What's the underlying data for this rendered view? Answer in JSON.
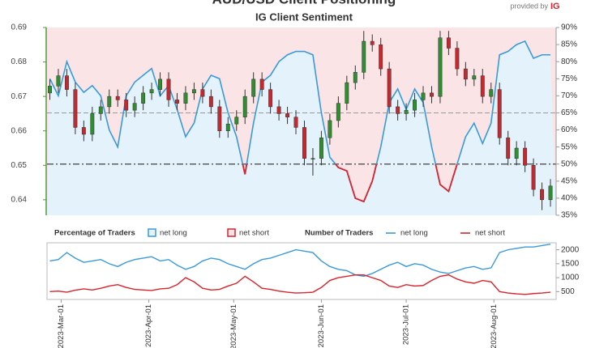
{
  "chart_data": [
    {
      "type": "candlestick",
      "title": "AUD/USD Client Positioning",
      "subtitle": "IG Client Sentiment",
      "credit": {
        "text": "provided by",
        "brand": "IG"
      },
      "x": [
        "2023-02-25",
        "2023-02-28",
        "2023-03-03",
        "2023-03-06",
        "2023-03-09",
        "2023-03-12",
        "2023-03-15",
        "2023-03-18",
        "2023-03-21",
        "2023-03-24",
        "2023-03-27",
        "2023-03-30",
        "2023-04-02",
        "2023-04-05",
        "2023-04-08",
        "2023-04-11",
        "2023-04-14",
        "2023-04-17",
        "2023-04-20",
        "2023-04-23",
        "2023-04-26",
        "2023-04-29",
        "2023-05-02",
        "2023-05-05",
        "2023-05-08",
        "2023-05-11",
        "2023-05-14",
        "2023-05-17",
        "2023-05-20",
        "2023-05-23",
        "2023-05-26",
        "2023-05-29",
        "2023-06-01",
        "2023-06-04",
        "2023-06-07",
        "2023-06-10",
        "2023-06-13",
        "2023-06-16",
        "2023-06-19",
        "2023-06-22",
        "2023-06-25",
        "2023-06-28",
        "2023-07-01",
        "2023-07-04",
        "2023-07-07",
        "2023-07-10",
        "2023-07-13",
        "2023-07-16",
        "2023-07-19",
        "2023-07-22",
        "2023-07-25",
        "2023-07-28",
        "2023-07-31",
        "2023-08-03",
        "2023-08-06",
        "2023-08-09",
        "2023-08-12",
        "2023-08-15",
        "2023-08-18",
        "2023-08-21"
      ],
      "xlim": [
        "2023-02-24",
        "2023-08-23"
      ],
      "open": [
        0.671,
        0.673,
        0.676,
        0.672,
        0.661,
        0.659,
        0.665,
        0.667,
        0.67,
        0.669,
        0.666,
        0.668,
        0.671,
        0.672,
        0.675,
        0.669,
        0.668,
        0.671,
        0.672,
        0.67,
        0.667,
        0.66,
        0.662,
        0.664,
        0.67,
        0.675,
        0.672,
        0.667,
        0.665,
        0.664,
        0.661,
        0.652,
        0.652,
        0.658,
        0.663,
        0.668,
        0.674,
        0.677,
        0.686,
        0.685,
        0.678,
        0.667,
        0.665,
        0.666,
        0.669,
        0.671,
        0.67,
        0.687,
        0.684,
        0.678,
        0.675,
        0.676,
        0.67,
        0.672,
        0.658,
        0.652,
        0.655,
        0.65,
        0.643,
        0.64
      ],
      "high": [
        0.675,
        0.678,
        0.678,
        0.674,
        0.663,
        0.667,
        0.669,
        0.672,
        0.672,
        0.671,
        0.67,
        0.673,
        0.674,
        0.677,
        0.677,
        0.671,
        0.673,
        0.674,
        0.674,
        0.672,
        0.669,
        0.664,
        0.666,
        0.672,
        0.677,
        0.677,
        0.674,
        0.669,
        0.667,
        0.666,
        0.663,
        0.655,
        0.66,
        0.665,
        0.67,
        0.676,
        0.679,
        0.689,
        0.688,
        0.687,
        0.68,
        0.669,
        0.668,
        0.671,
        0.673,
        0.673,
        0.689,
        0.689,
        0.686,
        0.68,
        0.678,
        0.678,
        0.674,
        0.674,
        0.66,
        0.657,
        0.657,
        0.652,
        0.645,
        0.646
      ],
      "low": [
        0.669,
        0.671,
        0.67,
        0.659,
        0.657,
        0.657,
        0.663,
        0.665,
        0.667,
        0.664,
        0.664,
        0.666,
        0.669,
        0.67,
        0.667,
        0.666,
        0.666,
        0.669,
        0.668,
        0.665,
        0.658,
        0.658,
        0.66,
        0.662,
        0.668,
        0.67,
        0.665,
        0.663,
        0.662,
        0.659,
        0.65,
        0.647,
        0.65,
        0.656,
        0.661,
        0.666,
        0.672,
        0.675,
        0.683,
        0.676,
        0.665,
        0.663,
        0.663,
        0.664,
        0.667,
        0.668,
        0.668,
        0.682,
        0.676,
        0.673,
        0.673,
        0.668,
        0.668,
        0.656,
        0.65,
        0.65,
        0.648,
        0.641,
        0.637,
        0.638
      ],
      "close": [
        0.673,
        0.676,
        0.672,
        0.661,
        0.659,
        0.665,
        0.667,
        0.67,
        0.669,
        0.666,
        0.668,
        0.671,
        0.672,
        0.675,
        0.669,
        0.668,
        0.671,
        0.672,
        0.67,
        0.667,
        0.66,
        0.662,
        0.664,
        0.67,
        0.675,
        0.672,
        0.667,
        0.665,
        0.664,
        0.661,
        0.652,
        0.652,
        0.658,
        0.663,
        0.668,
        0.674,
        0.677,
        0.686,
        0.685,
        0.678,
        0.667,
        0.665,
        0.666,
        0.669,
        0.671,
        0.67,
        0.687,
        0.684,
        0.678,
        0.675,
        0.676,
        0.67,
        0.672,
        0.658,
        0.652,
        0.655,
        0.65,
        0.643,
        0.64,
        0.644
      ],
      "up_color": "#2f8f2f",
      "down_color": "#c62830",
      "ylim": [
        0.6355,
        0.69
      ],
      "yticks": [
        0.64,
        0.65,
        0.66,
        0.67,
        0.68,
        0.69
      ],
      "pct_long": [
        75,
        70,
        80,
        74,
        71,
        73,
        70,
        60,
        55,
        70,
        74,
        76,
        78,
        70,
        73,
        66,
        58,
        62,
        72,
        76,
        75,
        65,
        58,
        47,
        62,
        74,
        76,
        80,
        82,
        83,
        83,
        82,
        65,
        52,
        49,
        48,
        40,
        39,
        45,
        55,
        68,
        72,
        66,
        72,
        68,
        55,
        44,
        42,
        50,
        58,
        62,
        56,
        62,
        82,
        83,
        85,
        86,
        81,
        82,
        82
      ],
      "y2lim": [
        35,
        90
      ],
      "y2ticks": [
        {
          "value": 35,
          "label": "35%"
        },
        {
          "value": 40,
          "label": "40%"
        },
        {
          "value": 45,
          "label": "45%"
        },
        {
          "value": 50,
          "label": "50%"
        },
        {
          "value": 55,
          "label": "55%"
        },
        {
          "value": 60,
          "label": "60%"
        },
        {
          "value": 65,
          "label": "65%"
        },
        {
          "value": 70,
          "label": "70%"
        },
        {
          "value": 75,
          "label": "75%"
        },
        {
          "value": 80,
          "label": "80%"
        },
        {
          "value": 85,
          "label": "85%"
        },
        {
          "value": 90,
          "label": "90%"
        }
      ],
      "y2_reflines": [
        50,
        65
      ],
      "legend_title": "Percentage of Traders",
      "legend": [
        {
          "name": "net long",
          "color": "#3a9ad9",
          "fill": "#e4f2fb"
        },
        {
          "name": "net short",
          "color": "#d9232d",
          "fill": "#fbe4e6"
        }
      ]
    },
    {
      "type": "line",
      "legend_title": "Number of Traders",
      "x": [
        "2023-02-25",
        "2023-02-28",
        "2023-03-03",
        "2023-03-06",
        "2023-03-09",
        "2023-03-12",
        "2023-03-15",
        "2023-03-18",
        "2023-03-21",
        "2023-03-24",
        "2023-03-27",
        "2023-03-30",
        "2023-04-02",
        "2023-04-05",
        "2023-04-08",
        "2023-04-11",
        "2023-04-14",
        "2023-04-17",
        "2023-04-20",
        "2023-04-23",
        "2023-04-26",
        "2023-04-29",
        "2023-05-02",
        "2023-05-05",
        "2023-05-08",
        "2023-05-11",
        "2023-05-14",
        "2023-05-17",
        "2023-05-20",
        "2023-05-23",
        "2023-05-26",
        "2023-05-29",
        "2023-06-01",
        "2023-06-04",
        "2023-06-07",
        "2023-06-10",
        "2023-06-13",
        "2023-06-16",
        "2023-06-19",
        "2023-06-22",
        "2023-06-25",
        "2023-06-28",
        "2023-07-01",
        "2023-07-04",
        "2023-07-07",
        "2023-07-10",
        "2023-07-13",
        "2023-07-16",
        "2023-07-19",
        "2023-07-22",
        "2023-07-25",
        "2023-07-28",
        "2023-07-31",
        "2023-08-03",
        "2023-08-06",
        "2023-08-09",
        "2023-08-12",
        "2023-08-15",
        "2023-08-18",
        "2023-08-21"
      ],
      "xlim": [
        "2023-02-24",
        "2023-08-23"
      ],
      "xticks": [
        {
          "value": "2023-03-01",
          "label": "2023-Mar-01"
        },
        {
          "value": "2023-04-01",
          "label": "2023-Apr-01"
        },
        {
          "value": "2023-05-01",
          "label": "2023-May-01"
        },
        {
          "value": "2023-06-01",
          "label": "2023-Jun-01"
        },
        {
          "value": "2023-07-01",
          "label": "2023-Jul-01"
        },
        {
          "value": "2023-08-01",
          "label": "2023-Aug-01"
        }
      ],
      "series": [
        {
          "name": "net long",
          "color": "#3a9ad9",
          "values": [
            1600,
            1650,
            1900,
            1700,
            1550,
            1600,
            1650,
            1500,
            1400,
            1550,
            1650,
            1700,
            1750,
            1600,
            1650,
            1450,
            1300,
            1400,
            1600,
            1700,
            1650,
            1500,
            1400,
            1300,
            1500,
            1650,
            1700,
            1800,
            1900,
            2000,
            1950,
            1900,
            1600,
            1400,
            1300,
            1250,
            1100,
            1050,
            1150,
            1300,
            1450,
            1550,
            1400,
            1500,
            1450,
            1300,
            1200,
            1150,
            1250,
            1350,
            1400,
            1300,
            1350,
            1900,
            2000,
            2050,
            2100,
            2100,
            2150,
            2200
          ]
        },
        {
          "name": "net short",
          "color": "#d9232d",
          "values": [
            500,
            520,
            480,
            550,
            600,
            560,
            620,
            700,
            750,
            650,
            580,
            560,
            540,
            600,
            620,
            750,
            1000,
            850,
            620,
            560,
            580,
            700,
            800,
            1050,
            850,
            620,
            580,
            520,
            480,
            450,
            460,
            480,
            650,
            900,
            1000,
            1050,
            1100,
            1100,
            1000,
            900,
            700,
            650,
            750,
            700,
            720,
            900,
            1050,
            1100,
            950,
            850,
            800,
            900,
            850,
            500,
            450,
            420,
            400,
            430,
            450,
            480
          ]
        }
      ],
      "ylim": [
        220,
        2250
      ],
      "yticks": [
        500,
        1000,
        1500,
        2000
      ]
    }
  ]
}
